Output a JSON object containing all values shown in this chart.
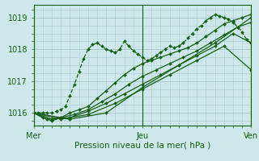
{
  "xlabel": "Pression niveau de la mer( hPa )",
  "bg_color": "#cce8e8",
  "grid_color": "#aacccc",
  "line_color": "#1a5c1a",
  "x_ticks": [
    0,
    48,
    96
  ],
  "x_tick_labels": [
    "Mer",
    "Jeu",
    "Ven"
  ],
  "ylim": [
    1015.6,
    1019.4
  ],
  "xlim": [
    0,
    96
  ],
  "yticks": [
    1016,
    1017,
    1018,
    1019
  ],
  "series": [
    {
      "x": [
        0,
        2,
        4,
        6,
        8,
        10,
        12,
        14,
        16,
        18,
        20,
        22,
        24,
        26,
        28,
        30,
        32,
        34,
        36,
        38,
        40,
        42,
        44,
        46,
        48,
        50,
        52,
        54,
        56,
        58,
        60,
        62,
        64,
        66,
        68,
        70,
        72,
        74,
        76,
        78,
        80,
        82,
        84,
        86,
        88,
        90,
        92,
        94,
        96
      ],
      "y": [
        1016.0,
        1016.0,
        1016.0,
        1016.0,
        1016.0,
        1016.05,
        1016.1,
        1016.2,
        1016.55,
        1016.9,
        1017.3,
        1017.7,
        1018.0,
        1018.15,
        1018.2,
        1018.1,
        1018.0,
        1017.95,
        1017.9,
        1018.0,
        1018.25,
        1018.1,
        1017.95,
        1017.85,
        1017.75,
        1017.65,
        1017.7,
        1017.8,
        1017.9,
        1018.0,
        1018.1,
        1018.05,
        1018.1,
        1018.2,
        1018.35,
        1018.5,
        1018.65,
        1018.75,
        1018.9,
        1019.0,
        1019.1,
        1019.05,
        1019.0,
        1018.95,
        1018.85,
        1018.7,
        1018.55,
        1018.3,
        1018.2
      ],
      "ls": "--",
      "lw": 0.9,
      "ms": 2.0
    },
    {
      "x": [
        0,
        4,
        8,
        12,
        16,
        20,
        24,
        28,
        32,
        36,
        40,
        44,
        48,
        52,
        56,
        60,
        64,
        68,
        72,
        76,
        80,
        84,
        88,
        92,
        96
      ],
      "y": [
        1016.0,
        1015.85,
        1015.75,
        1015.85,
        1016.0,
        1016.1,
        1016.2,
        1016.45,
        1016.7,
        1016.95,
        1017.2,
        1017.4,
        1017.55,
        1017.65,
        1017.75,
        1017.85,
        1017.95,
        1018.05,
        1018.2,
        1018.4,
        1018.6,
        1018.8,
        1018.9,
        1019.0,
        1019.1
      ],
      "ls": "-",
      "lw": 0.9,
      "ms": 2.0
    },
    {
      "x": [
        0,
        6,
        12,
        18,
        24,
        30,
        36,
        42,
        48,
        54,
        60,
        66,
        72,
        78,
        84,
        90,
        96
      ],
      "y": [
        1016.0,
        1015.8,
        1015.85,
        1015.95,
        1016.1,
        1016.35,
        1016.6,
        1016.9,
        1017.15,
        1017.35,
        1017.55,
        1017.75,
        1017.95,
        1018.2,
        1018.45,
        1018.7,
        1018.85
      ],
      "ls": "-",
      "lw": 0.9,
      "ms": 2.0
    },
    {
      "x": [
        0,
        8,
        16,
        24,
        32,
        40,
        48,
        56,
        64,
        72,
        80,
        88,
        96
      ],
      "y": [
        1016.0,
        1015.8,
        1015.85,
        1016.05,
        1016.3,
        1016.6,
        1016.9,
        1017.2,
        1017.5,
        1017.8,
        1018.1,
        1018.5,
        1018.2
      ],
      "ls": "-",
      "lw": 0.9,
      "ms": 2.0
    },
    {
      "x": [
        0,
        12,
        24,
        36,
        48,
        60,
        72,
        84,
        96
      ],
      "y": [
        1016.0,
        1015.8,
        1015.95,
        1016.3,
        1016.75,
        1017.2,
        1017.65,
        1018.1,
        1017.35
      ],
      "ls": "-",
      "lw": 0.9,
      "ms": 2.0
    },
    {
      "x": [
        0,
        16,
        32,
        48,
        64,
        80,
        96
      ],
      "y": [
        1016.0,
        1015.8,
        1016.0,
        1016.8,
        1017.5,
        1018.2,
        1019.0
      ],
      "ls": "-",
      "lw": 0.9,
      "ms": 2.0
    }
  ]
}
